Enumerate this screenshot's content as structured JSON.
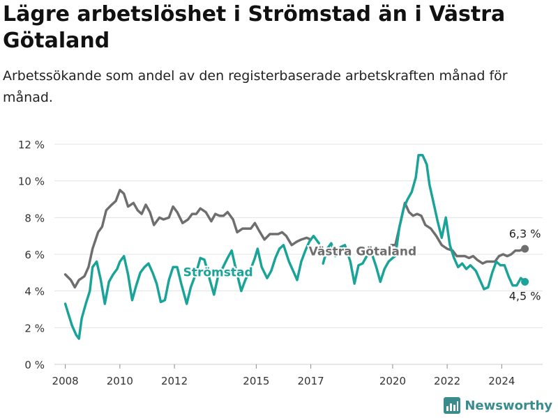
{
  "header": {
    "title": "Lägre arbetslöshet i Strömstad än i Västra Götaland",
    "subtitle": "Arbetssökande som andel av den registerbaserade arbetskraften månad för månad."
  },
  "brand": {
    "name": "Newsworthy",
    "color": "#3a8c8c"
  },
  "chart_data": {
    "type": "line",
    "title": "Lägre arbetslöshet i Strömstad än i Västra Götaland",
    "subtitle": "Arbetssökande som andel av den registerbaserade arbetskraften månad för månad.",
    "xlabel": "",
    "ylabel": "",
    "xlim": [
      2007.6,
      2025.5
    ],
    "ylim": [
      0,
      12
    ],
    "x_ticks": [
      2008,
      2010,
      2012,
      2015,
      2017,
      2020,
      2022,
      2024
    ],
    "x_tick_labels": [
      "2008",
      "2010",
      "2012",
      "2015",
      "2017",
      "2020",
      "2022",
      "2024"
    ],
    "y_ticks": [
      0,
      2,
      4,
      6,
      8,
      10,
      12
    ],
    "y_tick_labels": [
      "0 %",
      "2 %",
      "4 %",
      "6 %",
      "8 %",
      "10 %",
      "12 %"
    ],
    "grid": "horizontal",
    "series": [
      {
        "name": "Västra Götaland",
        "color": "#6e6e6e",
        "end_label": "6,3 %",
        "points": [
          [
            2008.0,
            4.9
          ],
          [
            2008.2,
            4.6
          ],
          [
            2008.35,
            4.2
          ],
          [
            2008.5,
            4.6
          ],
          [
            2008.7,
            4.8
          ],
          [
            2008.85,
            5.3
          ],
          [
            2009.0,
            6.3
          ],
          [
            2009.2,
            7.2
          ],
          [
            2009.35,
            7.5
          ],
          [
            2009.5,
            8.4
          ],
          [
            2009.7,
            8.7
          ],
          [
            2009.85,
            8.9
          ],
          [
            2010.0,
            9.5
          ],
          [
            2010.15,
            9.3
          ],
          [
            2010.3,
            8.6
          ],
          [
            2010.5,
            8.8
          ],
          [
            2010.65,
            8.4
          ],
          [
            2010.8,
            8.2
          ],
          [
            2010.95,
            8.7
          ],
          [
            2011.1,
            8.3
          ],
          [
            2011.25,
            7.6
          ],
          [
            2011.45,
            8.0
          ],
          [
            2011.6,
            7.9
          ],
          [
            2011.8,
            8.0
          ],
          [
            2011.95,
            8.6
          ],
          [
            2012.1,
            8.3
          ],
          [
            2012.3,
            7.7
          ],
          [
            2012.5,
            7.9
          ],
          [
            2012.65,
            8.2
          ],
          [
            2012.8,
            8.2
          ],
          [
            2012.95,
            8.5
          ],
          [
            2013.15,
            8.3
          ],
          [
            2013.35,
            7.8
          ],
          [
            2013.5,
            8.2
          ],
          [
            2013.65,
            8.1
          ],
          [
            2013.8,
            8.1
          ],
          [
            2013.95,
            8.3
          ],
          [
            2014.15,
            7.9
          ],
          [
            2014.3,
            7.2
          ],
          [
            2014.5,
            7.4
          ],
          [
            2014.65,
            7.4
          ],
          [
            2014.8,
            7.4
          ],
          [
            2014.95,
            7.7
          ],
          [
            2015.1,
            7.3
          ],
          [
            2015.3,
            6.8
          ],
          [
            2015.5,
            7.1
          ],
          [
            2015.65,
            7.1
          ],
          [
            2015.8,
            7.1
          ],
          [
            2015.95,
            7.2
          ],
          [
            2016.1,
            7.0
          ],
          [
            2016.3,
            6.5
          ],
          [
            2016.5,
            6.7
          ],
          [
            2016.65,
            6.8
          ],
          [
            2016.85,
            6.9
          ],
          [
            2017.0,
            6.8
          ]
        ],
        "points_b": [
          [
            2019.95,
            6.5
          ],
          [
            2020.1,
            6.5
          ],
          [
            2020.3,
            7.8
          ],
          [
            2020.45,
            8.8
          ],
          [
            2020.6,
            8.3
          ],
          [
            2020.75,
            8.1
          ],
          [
            2020.9,
            8.2
          ],
          [
            2021.05,
            8.1
          ],
          [
            2021.2,
            7.6
          ],
          [
            2021.4,
            7.4
          ],
          [
            2021.6,
            7.0
          ],
          [
            2021.8,
            6.5
          ],
          [
            2022.0,
            6.3
          ],
          [
            2022.2,
            6.2
          ],
          [
            2022.35,
            5.9
          ],
          [
            2022.5,
            5.9
          ],
          [
            2022.65,
            5.9
          ],
          [
            2022.8,
            5.8
          ],
          [
            2022.95,
            5.9
          ],
          [
            2023.1,
            5.7
          ],
          [
            2023.3,
            5.5
          ],
          [
            2023.45,
            5.6
          ],
          [
            2023.6,
            5.6
          ],
          [
            2023.75,
            5.6
          ],
          [
            2023.9,
            5.9
          ],
          [
            2024.05,
            6.0
          ],
          [
            2024.2,
            5.9
          ],
          [
            2024.35,
            6.0
          ],
          [
            2024.5,
            6.2
          ],
          [
            2024.65,
            6.2
          ],
          [
            2024.85,
            6.3
          ]
        ]
      },
      {
        "name": "Strömstad",
        "color": "#1aa398",
        "end_label": "4,5 %",
        "points": [
          [
            2008.0,
            3.3
          ],
          [
            2008.1,
            2.8
          ],
          [
            2008.25,
            2.1
          ],
          [
            2008.4,
            1.6
          ],
          [
            2008.5,
            1.4
          ],
          [
            2008.6,
            2.5
          ],
          [
            2008.75,
            3.3
          ],
          [
            2008.9,
            4.0
          ],
          [
            2009.0,
            5.3
          ],
          [
            2009.15,
            5.6
          ],
          [
            2009.3,
            4.6
          ],
          [
            2009.45,
            3.3
          ],
          [
            2009.6,
            4.5
          ],
          [
            2009.75,
            4.9
          ],
          [
            2009.9,
            5.2
          ],
          [
            2010.0,
            5.6
          ],
          [
            2010.15,
            5.9
          ],
          [
            2010.3,
            4.9
          ],
          [
            2010.45,
            3.5
          ],
          [
            2010.6,
            4.3
          ],
          [
            2010.75,
            5.0
          ],
          [
            2010.9,
            5.3
          ],
          [
            2011.05,
            5.5
          ],
          [
            2011.2,
            5.0
          ],
          [
            2011.35,
            4.4
          ],
          [
            2011.5,
            3.4
          ],
          [
            2011.65,
            3.5
          ],
          [
            2011.8,
            4.6
          ],
          [
            2011.95,
            5.3
          ],
          [
            2012.1,
            5.3
          ],
          [
            2012.25,
            4.4
          ],
          [
            2012.45,
            3.3
          ],
          [
            2012.6,
            4.2
          ],
          [
            2012.8,
            5.0
          ],
          [
            2012.95,
            5.8
          ],
          [
            2013.1,
            5.7
          ],
          [
            2013.3,
            4.6
          ],
          [
            2013.45,
            3.8
          ],
          [
            2013.6,
            4.8
          ],
          [
            2013.75,
            5.2
          ],
          [
            2013.95,
            5.8
          ],
          [
            2014.1,
            6.2
          ],
          [
            2014.25,
            5.2
          ],
          [
            2014.45,
            4.0
          ],
          [
            2014.6,
            4.6
          ],
          [
            2014.8,
            5.2
          ],
          [
            2014.95,
            5.8
          ],
          [
            2015.05,
            6.3
          ],
          [
            2015.2,
            5.3
          ],
          [
            2015.4,
            4.7
          ],
          [
            2015.55,
            5.1
          ],
          [
            2015.7,
            5.8
          ],
          [
            2015.85,
            6.3
          ],
          [
            2016.0,
            6.5
          ],
          [
            2016.2,
            5.6
          ],
          [
            2016.35,
            5.1
          ],
          [
            2016.5,
            4.6
          ],
          [
            2016.65,
            5.6
          ],
          [
            2016.8,
            6.2
          ],
          [
            2016.95,
            6.7
          ],
          [
            2017.1,
            7.0
          ],
          [
            2017.3,
            6.6
          ]
        ],
        "points_b": [
          [
            2017.45,
            5.5
          ],
          [
            2017.6,
            6.3
          ],
          [
            2017.75,
            6.6
          ],
          [
            2017.9,
            5.9
          ],
          [
            2018.1,
            6.4
          ],
          [
            2018.25,
            6.5
          ],
          [
            2018.45,
            5.6
          ],
          [
            2018.6,
            4.4
          ],
          [
            2018.75,
            5.4
          ],
          [
            2018.9,
            5.5
          ],
          [
            2019.05,
            5.9
          ],
          [
            2019.2,
            6.2
          ],
          [
            2019.4,
            5.3
          ],
          [
            2019.55,
            4.5
          ],
          [
            2019.7,
            5.2
          ],
          [
            2019.85,
            5.6
          ],
          [
            2020.0,
            5.8
          ],
          [
            2020.1,
            5.9
          ],
          [
            2020.25,
            7.5
          ],
          [
            2020.4,
            8.5
          ],
          [
            2020.55,
            9.0
          ],
          [
            2020.7,
            9.4
          ],
          [
            2020.85,
            10.2
          ],
          [
            2020.95,
            11.4
          ],
          [
            2021.1,
            11.4
          ],
          [
            2021.25,
            10.9
          ],
          [
            2021.35,
            9.8
          ],
          [
            2021.5,
            8.8
          ],
          [
            2021.65,
            7.8
          ],
          [
            2021.8,
            6.9
          ],
          [
            2021.95,
            8.0
          ],
          [
            2022.1,
            6.5
          ],
          [
            2022.25,
            5.8
          ],
          [
            2022.4,
            5.3
          ],
          [
            2022.55,
            5.5
          ],
          [
            2022.7,
            5.2
          ],
          [
            2022.85,
            5.4
          ],
          [
            2023.05,
            5.1
          ],
          [
            2023.2,
            4.6
          ],
          [
            2023.35,
            4.1
          ],
          [
            2023.5,
            4.2
          ],
          [
            2023.65,
            5.0
          ],
          [
            2023.8,
            5.6
          ],
          [
            2023.95,
            5.4
          ],
          [
            2024.1,
            5.4
          ],
          [
            2024.25,
            4.8
          ],
          [
            2024.4,
            4.3
          ],
          [
            2024.55,
            4.3
          ],
          [
            2024.7,
            4.7
          ],
          [
            2024.85,
            4.5
          ]
        ]
      }
    ],
    "annotations": [
      {
        "series": "Strömstad",
        "text": "Strömstad",
        "x": 2013.6,
        "y": 4.8,
        "color": "#1aa398"
      },
      {
        "series": "Västra Götaland",
        "text": "Västra Götaland",
        "x": 2018.9,
        "y": 5.95,
        "color": "#6e6e6e"
      }
    ]
  }
}
